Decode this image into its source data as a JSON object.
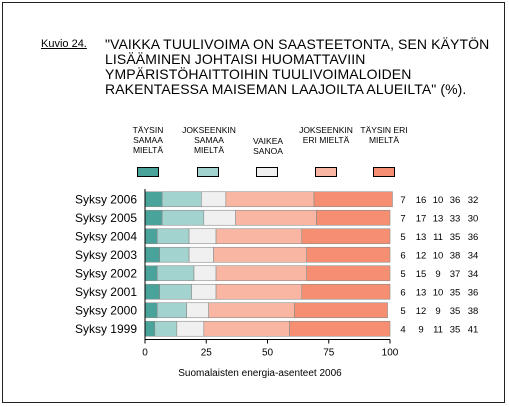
{
  "figure": {
    "label": "Kuvio 24.",
    "title": "\"VAIKKA TUULIVOIMA ON SAASTEETONTA, SEN KÄYTÖN LISÄÄMINEN JOHTAISI HUOMATTAVIIN YMPÄRISTÖHAITTOIHIN TUULIVOIMALOIDEN RAKENTAESSA MAISEMAN LAAJOILTA ALUEILTA\" (%).",
    "source": "Suomalaisten energia-asenteet 2006"
  },
  "legend": [
    {
      "label": "Täysin samaa mieltä",
      "color": "#4aa39a"
    },
    {
      "label": "Jokseenkin samaa mieltä",
      "color": "#a3d3cf"
    },
    {
      "label": "Vaikea sanoa",
      "color": "#f0f0f0"
    },
    {
      "label": "Jokseenkin eri mieltä",
      "color": "#f9b7a3"
    },
    {
      "label": "Täysin eri mieltä",
      "color": "#f68f71"
    }
  ],
  "chart_data": {
    "type": "bar",
    "orientation": "horizontal",
    "stacked": true,
    "categories": [
      "Syksy 2006",
      "Syksy 2005",
      "Syksy 2004",
      "Syksy 2003",
      "Syksy 2002",
      "Syksy 2001",
      "Syksy 2000",
      "Syksy 1999"
    ],
    "series": [
      {
        "name": "Täysin samaa mieltä",
        "color": "#4aa39a",
        "values": [
          7,
          7,
          5,
          6,
          5,
          6,
          5,
          4
        ]
      },
      {
        "name": "Jokseenkin samaa mieltä",
        "color": "#a3d3cf",
        "values": [
          16,
          17,
          13,
          12,
          15,
          13,
          12,
          9
        ]
      },
      {
        "name": "Vaikea sanoa",
        "color": "#f0f0f0",
        "values": [
          10,
          13,
          11,
          10,
          9,
          10,
          9,
          11
        ]
      },
      {
        "name": "Jokseenkin eri mieltä",
        "color": "#f9b7a3",
        "values": [
          36,
          33,
          35,
          38,
          37,
          35,
          35,
          35
        ]
      },
      {
        "name": "Täysin eri mieltä",
        "color": "#f68f71",
        "values": [
          32,
          30,
          36,
          34,
          34,
          36,
          38,
          41
        ]
      }
    ],
    "xlim": [
      0,
      100
    ],
    "xticks": [
      "0",
      "25",
      "50",
      "75",
      "100"
    ],
    "xlabel": "",
    "ylabel": "",
    "grid": false,
    "legend_position": "top"
  }
}
